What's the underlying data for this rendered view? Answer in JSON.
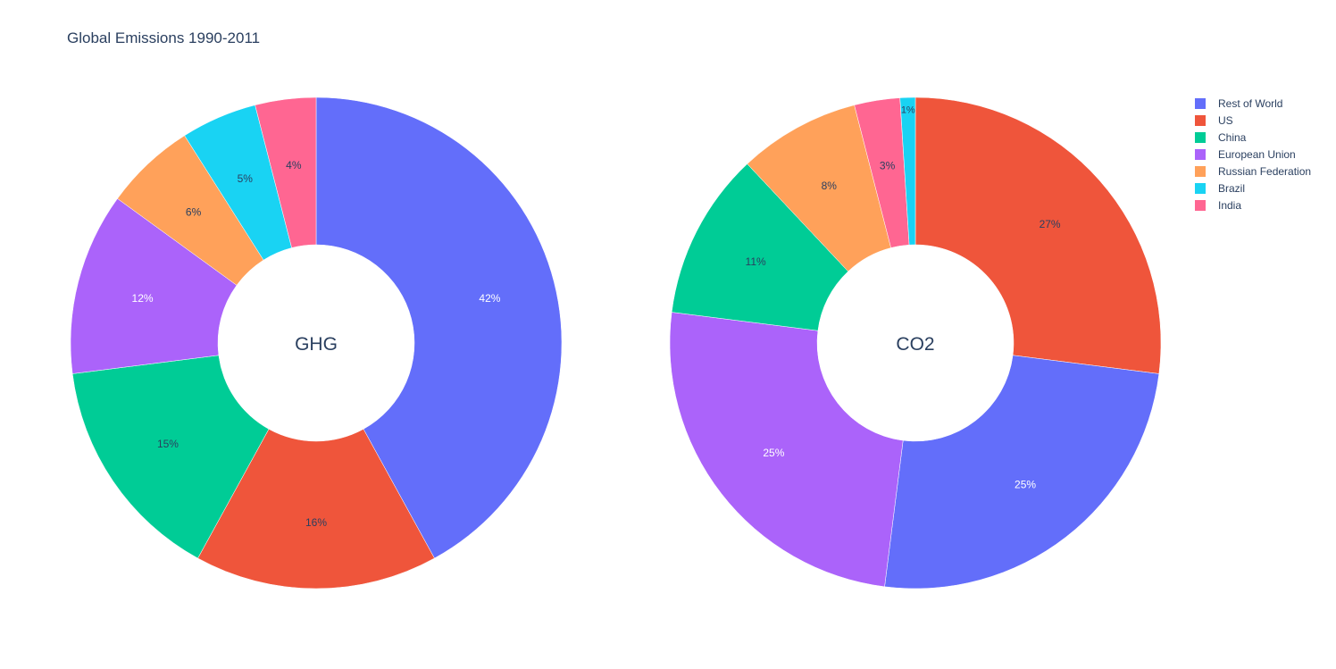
{
  "title": "Global Emissions 1990-2011",
  "legend": [
    "Rest of World",
    "US",
    "China",
    "European Union",
    "Russian Federation",
    "Brazil",
    "India"
  ],
  "colors": {
    "Rest of World": "#636efa",
    "US": "#ef553b",
    "China": "#00cc96",
    "European Union": "#ab63fa",
    "Russian Federation": "#ffa15a",
    "Brazil": "#19d3f3",
    "India": "#ff6692"
  },
  "chart_data": [
    {
      "type": "pie",
      "center_label": "GHG",
      "hole": 0.4,
      "labels": [
        "Rest of World",
        "US",
        "China",
        "European Union",
        "Russian Federation",
        "Brazil",
        "India"
      ],
      "values": [
        42,
        16,
        15,
        12,
        6,
        5,
        4
      ],
      "text": [
        "42%",
        "16%",
        "15%",
        "12%",
        "6%",
        "5%",
        "4%"
      ],
      "sort_descending": true,
      "direction": "clockwise"
    },
    {
      "type": "pie",
      "center_label": "CO2",
      "hole": 0.4,
      "labels": [
        "US",
        "Rest of World",
        "European Union",
        "China",
        "Russian Federation",
        "India",
        "Brazil"
      ],
      "values": [
        27,
        25,
        25,
        11,
        8,
        3,
        1
      ],
      "text": [
        "27%",
        "25%",
        "25%",
        "11%",
        "8%",
        "3%",
        "1%"
      ],
      "sort_descending": true,
      "direction": "clockwise"
    }
  ]
}
